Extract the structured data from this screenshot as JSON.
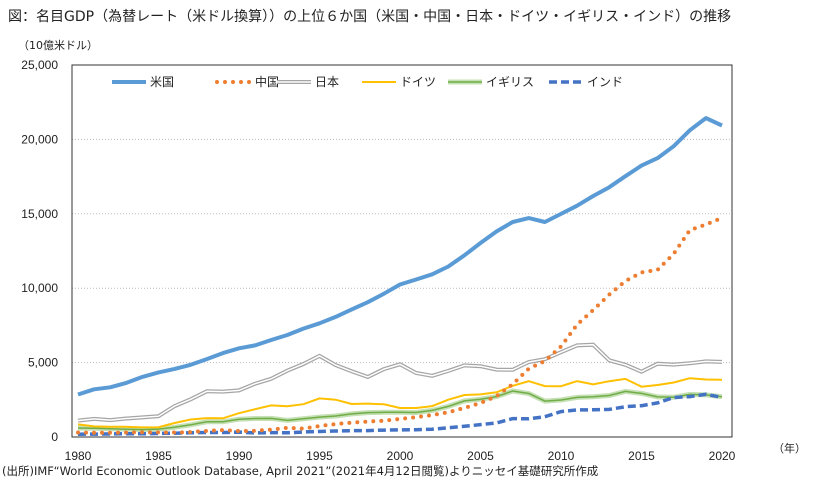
{
  "title": "図：名目GDP（為替レート（米ドル換算））の上位６か国（米国・中国・日本・ドイツ・イギリス・インド）の推移",
  "source": "(出所)IMF“World Economic Outlook Database, April 2021”(2021年4月12日閲覧)よりニッセイ基礎研究所作成",
  "chart_data": {
    "type": "line",
    "title": "",
    "ylabel": "（10億米ドル）",
    "xlabel": "（年）",
    "ylim": [
      0,
      25000
    ],
    "xlim": [
      1980,
      2020
    ],
    "yticks": [
      "0",
      "5,000",
      "10,000",
      "15,000",
      "20,000",
      "25,000"
    ],
    "ytick_values": [
      0,
      5000,
      10000,
      15000,
      20000,
      25000
    ],
    "xticks": [
      "1980",
      "1985",
      "1990",
      "1995",
      "2000",
      "2005",
      "2010",
      "2015",
      "2020"
    ],
    "xtick_values": [
      1980,
      1985,
      1990,
      1995,
      2000,
      2005,
      2010,
      2015,
      2020
    ],
    "grid": "horizontal-dotted",
    "legend": "top",
    "x": [
      1980,
      1981,
      1982,
      1983,
      1984,
      1985,
      1986,
      1987,
      1988,
      1989,
      1990,
      1991,
      1992,
      1993,
      1994,
      1995,
      1996,
      1997,
      1998,
      1999,
      2000,
      2001,
      2002,
      2003,
      2004,
      2005,
      2006,
      2007,
      2008,
      2009,
      2010,
      2011,
      2012,
      2013,
      2014,
      2015,
      2016,
      2017,
      2018,
      2019,
      2020
    ],
    "series": [
      {
        "name": "米国",
        "color": "#5B9BD5",
        "style": "solid-thick",
        "values": [
          2857,
          3207,
          3343,
          3634,
          4037,
          4339,
          4579,
          4855,
          5236,
          5641,
          5963,
          6158,
          6520,
          6858,
          7287,
          7639,
          8073,
          8577,
          9062,
          9631,
          10251,
          10582,
          10936,
          11458,
          12213,
          13037,
          13815,
          14452,
          14713,
          14449,
          14992,
          15543,
          16197,
          16785,
          17527,
          18238,
          18745,
          19543,
          20612,
          21433,
          20937
        ]
      },
      {
        "name": "中国",
        "color": "#ED7D31",
        "style": "dotted",
        "values": [
          305,
          290,
          284,
          304,
          314,
          310,
          301,
          328,
          411,
          461,
          397,
          415,
          494,
          617,
          564,
          736,
          867,
          965,
          1032,
          1097,
          1211,
          1339,
          1471,
          1660,
          1955,
          2286,
          2752,
          3550,
          4594,
          5102,
          6087,
          7552,
          8532,
          9570,
          10476,
          11062,
          11233,
          12310,
          13895,
          14280,
          14723
        ]
      },
      {
        "name": "日本",
        "color": "#A5A5A5",
        "style": "double",
        "values": [
          1105,
          1218,
          1134,
          1243,
          1318,
          1399,
          2079,
          2532,
          3072,
          3054,
          3133,
          3584,
          3909,
          4454,
          4907,
          5449,
          4833,
          4414,
          4033,
          4562,
          4888,
          4304,
          4115,
          4445,
          4815,
          4755,
          4530,
          4515,
          5038,
          5231,
          5700,
          6157,
          6203,
          5156,
          4850,
          4389,
          4923,
          4867,
          4955,
          5082,
          5049
        ]
      },
      {
        "name": "ドイツ",
        "color": "#FFC000",
        "style": "solid",
        "values": [
          850,
          715,
          690,
          688,
          648,
          661,
          944,
          1177,
          1267,
          1258,
          1598,
          1868,
          2126,
          2071,
          2206,
          2592,
          2504,
          2218,
          2243,
          2200,
          1948,
          1951,
          2079,
          2505,
          2820,
          2861,
          3002,
          3440,
          3752,
          3418,
          3417,
          3758,
          3544,
          3753,
          3905,
          3383,
          3496,
          3665,
          3950,
          3861,
          3846
        ]
      },
      {
        "name": "イギリス",
        "color": "#70AD47",
        "style": "solid-halo",
        "values": [
          604,
          585,
          556,
          522,
          494,
          530,
          651,
          818,
          1020,
          1022,
          1197,
          1242,
          1247,
          1117,
          1226,
          1335,
          1413,
          1555,
          1643,
          1660,
          1665,
          1645,
          1786,
          2055,
          2425,
          2539,
          2714,
          3092,
          2924,
          2413,
          2485,
          2664,
          2707,
          2786,
          3066,
          2928,
          2694,
          2666,
          2861,
          2830,
          2710
        ]
      },
      {
        "name": "インド",
        "color": "#4472C4",
        "style": "dashed",
        "values": [
          186,
          196,
          203,
          222,
          215,
          237,
          253,
          284,
          301,
          301,
          327,
          275,
          294,
          284,
          333,
          367,
          400,
          423,
          428,
          467,
          477,
          493,
          523,
          618,
          722,
          834,
          949,
          1238,
          1224,
          1365,
          1708,
          1823,
          1828,
          1857,
          2039,
          2104,
          2295,
          2652,
          2713,
          2869,
          2660
        ]
      }
    ]
  }
}
